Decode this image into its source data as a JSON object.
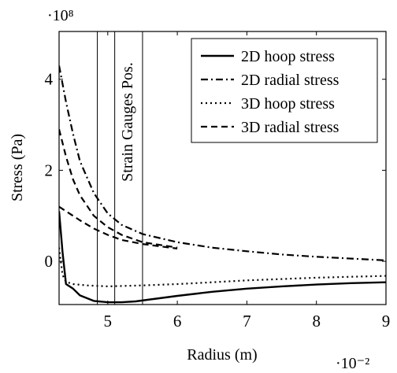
{
  "chart_data": {
    "type": "line",
    "title": "",
    "xlabel": "Radius (m)",
    "ylabel": "Stress (Pa)",
    "x_scale_label": "·10⁻²",
    "y_scale_label": "·10⁸",
    "xlim": [
      4.3,
      9.0
    ],
    "ylim": [
      -0.95,
      5.05
    ],
    "x_ticks": [
      5,
      6,
      7,
      8,
      9
    ],
    "x_tick_labels": [
      "5",
      "6",
      "7",
      "8",
      "9"
    ],
    "y_ticks": [
      0,
      2,
      4
    ],
    "y_tick_labels": [
      "0",
      "2",
      "4"
    ],
    "grid": false,
    "legend_position": "top-right",
    "vertical_lines": [
      4.85,
      5.1,
      5.5
    ],
    "annotation": "Strain Gauges Pos.",
    "series": [
      {
        "name": "2D hoop stress",
        "style": "solid",
        "x": [
          4.3,
          4.35,
          4.4,
          4.5,
          4.6,
          4.8,
          5.0,
          5.2,
          5.4,
          5.7,
          6.0,
          6.5,
          7.0,
          7.5,
          8.0,
          8.5,
          9.0
        ],
        "y": [
          1.1,
          0.2,
          -0.5,
          -0.6,
          -0.75,
          -0.87,
          -0.9,
          -0.9,
          -0.88,
          -0.82,
          -0.76,
          -0.67,
          -0.6,
          -0.55,
          -0.51,
          -0.48,
          -0.46
        ]
      },
      {
        "name": "2D radial stress",
        "style": "dashdot",
        "x": [
          4.3,
          4.4,
          4.5,
          4.6,
          4.8,
          5.0,
          5.2,
          5.5,
          6.0,
          6.5,
          7.0,
          7.5,
          8.0,
          8.5,
          9.0
        ],
        "y": [
          4.3,
          3.5,
          2.8,
          2.2,
          1.5,
          1.05,
          0.8,
          0.6,
          0.42,
          0.3,
          0.22,
          0.15,
          0.1,
          0.06,
          0.02
        ]
      },
      {
        "name": "3D hoop stress",
        "style": "dotted",
        "x": [
          4.3,
          4.35,
          4.4,
          4.5,
          4.7,
          5.0,
          5.5,
          6.0,
          6.5,
          7.0,
          7.5,
          8.0,
          8.5,
          9.0
        ],
        "y": [
          0.3,
          -0.3,
          -0.45,
          -0.5,
          -0.53,
          -0.55,
          -0.53,
          -0.5,
          -0.46,
          -0.42,
          -0.39,
          -0.36,
          -0.34,
          -0.32
        ]
      },
      {
        "name": "3D radial stress",
        "style": "dashed",
        "x": [
          4.3,
          4.4,
          4.5,
          4.6,
          4.8,
          5.0,
          5.2,
          5.5,
          6.0
        ],
        "y": [
          2.9,
          2.3,
          1.8,
          1.45,
          1.0,
          0.75,
          0.58,
          0.42,
          0.3
        ]
      },
      {
        "name": "3D radial stress",
        "style": "dashed",
        "x": [
          4.3,
          4.4,
          4.5,
          4.6,
          4.8,
          5.0,
          5.2,
          5.5,
          6.0
        ],
        "y": [
          1.2,
          1.1,
          1.0,
          0.9,
          0.72,
          0.58,
          0.47,
          0.38,
          0.28
        ]
      }
    ]
  }
}
